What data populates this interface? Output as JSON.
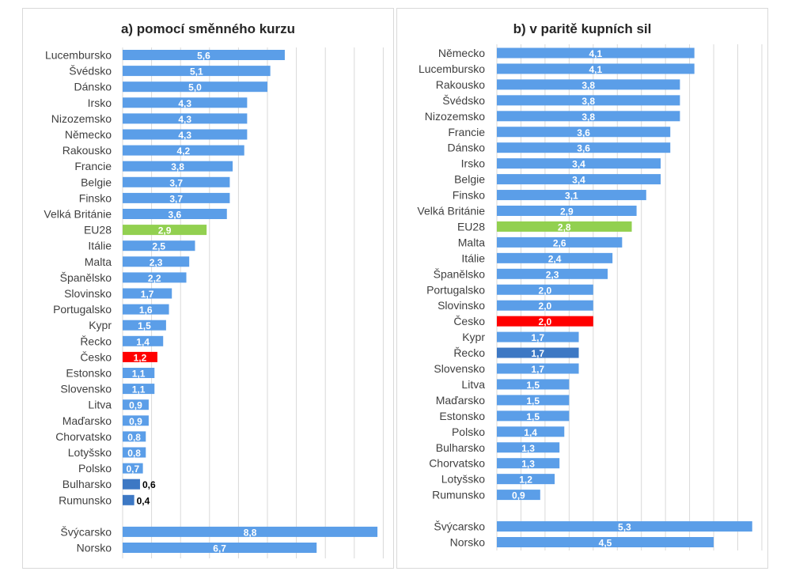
{
  "colors": {
    "bar": "#5b9ee8",
    "eu": "#92d050",
    "cz": "#ff0000",
    "dark_bar": "#3d78c4",
    "grid": "#d9d9d9"
  },
  "chart_data": [
    {
      "type": "bar",
      "orientation": "horizontal",
      "title": "a) pomocí směnného kurzu",
      "xlim": [
        0,
        9
      ],
      "grid": true,
      "categories": [
        "Lucembursko",
        "Švédsko",
        "Dánsko",
        "Irsko",
        "Nizozemsko",
        "Německo",
        "Rakousko",
        "Francie",
        "Belgie",
        "Finsko",
        "Velká Británie",
        "EU28",
        "Itálie",
        "Malta",
        "Španělsko",
        "Slovinsko",
        "Portugalsko",
        "Kypr",
        "Řecko",
        "Česko",
        "Estonsko",
        "Slovensko",
        "Litva",
        "Maďarsko",
        "Chorvatsko",
        "Lotyšsko",
        "Polsko",
        "Bulharsko",
        "Rumunsko",
        "Švýcarsko",
        "Norsko"
      ],
      "values": [
        5.6,
        5.1,
        5.0,
        4.3,
        4.3,
        4.3,
        4.2,
        3.8,
        3.7,
        3.7,
        3.6,
        2.9,
        2.5,
        2.3,
        2.2,
        1.7,
        1.6,
        1.5,
        1.4,
        1.2,
        1.1,
        1.1,
        0.9,
        0.9,
        0.8,
        0.8,
        0.7,
        0.6,
        0.4,
        8.8,
        6.7
      ],
      "labels": [
        "5,6",
        "5,1",
        "5,0",
        "4,3",
        "4,3",
        "4,3",
        "4,2",
        "3,8",
        "3,7",
        "3,7",
        "3,6",
        "2,9",
        "2,5",
        "2,3",
        "2,2",
        "1,7",
        "1,6",
        "1,5",
        "1,4",
        "1,2",
        "1,1",
        "1,1",
        "0,9",
        "0,9",
        "0,8",
        "0,8",
        "0,7",
        "0,6",
        "0,4",
        "8,8",
        "6,7"
      ]
    },
    {
      "type": "bar",
      "orientation": "horizontal",
      "title": "b) v paritě kupních sil",
      "xlim": [
        0,
        5.5
      ],
      "grid": true,
      "categories": [
        "Německo",
        "Lucembursko",
        "Rakousko",
        "Švédsko",
        "Nizozemsko",
        "Francie",
        "Dánsko",
        "Irsko",
        "Belgie",
        "Finsko",
        "Velká Británie",
        "EU28",
        "Malta",
        "Itálie",
        "Španělsko",
        "Portugalsko",
        "Slovinsko",
        "Česko",
        "Kypr",
        "Řecko",
        "Slovensko",
        "Litva",
        "Maďarsko",
        "Estonsko",
        "Polsko",
        "Bulharsko",
        "Chorvatsko",
        "Lotyšsko",
        "Rumunsko",
        "Švýcarsko",
        "Norsko"
      ],
      "values": [
        4.1,
        4.1,
        3.8,
        3.8,
        3.8,
        3.6,
        3.6,
        3.4,
        3.4,
        3.1,
        2.9,
        2.8,
        2.6,
        2.4,
        2.3,
        2.0,
        2.0,
        2.0,
        1.7,
        1.7,
        1.7,
        1.5,
        1.5,
        1.5,
        1.4,
        1.3,
        1.3,
        1.2,
        0.9,
        5.3,
        4.5
      ],
      "labels": [
        "4,1",
        "4,1",
        "3,8",
        "3,8",
        "3,8",
        "3,6",
        "3,6",
        "3,4",
        "3,4",
        "3,1",
        "2,9",
        "2,8",
        "2,6",
        "2,4",
        "2,3",
        "2,0",
        "2,0",
        "2,0",
        "1,7",
        "1,7",
        "1,7",
        "1,5",
        "1,5",
        "1,5",
        "1,4",
        "1,3",
        "1,3",
        "1,2",
        "0,9",
        "5,3",
        "4,5"
      ]
    }
  ]
}
